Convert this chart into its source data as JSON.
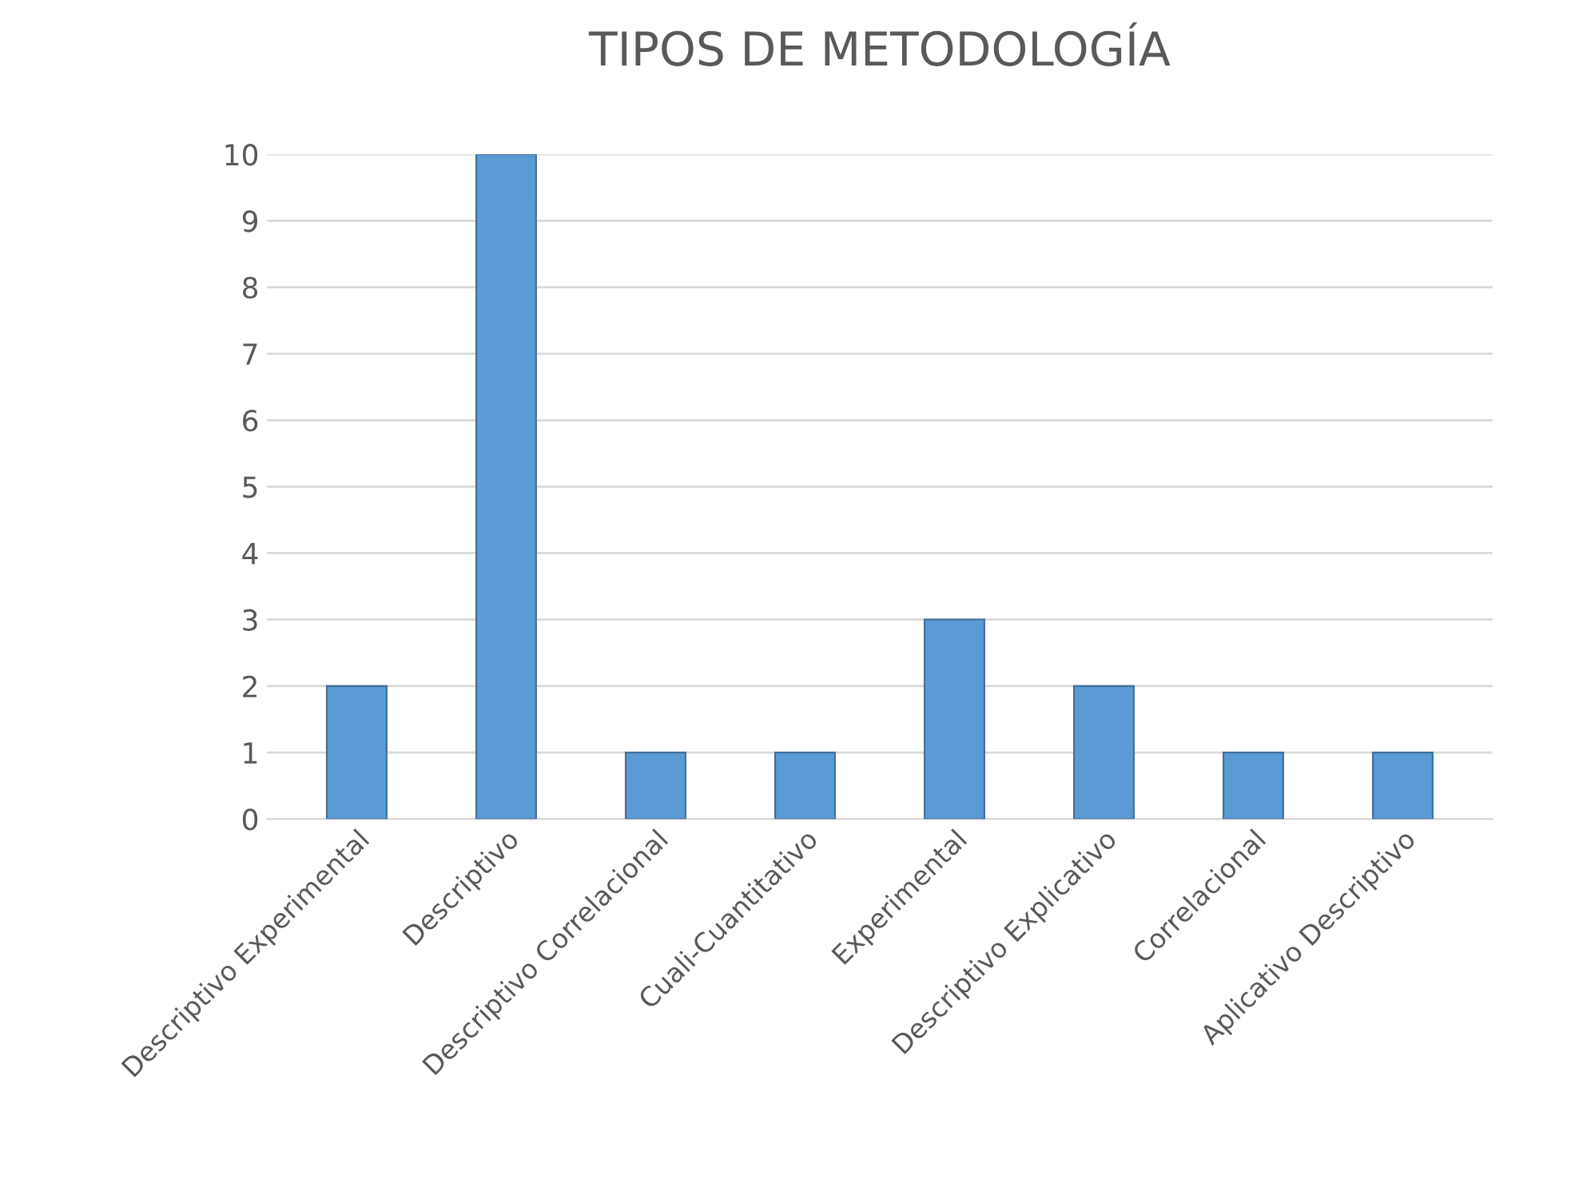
{
  "chart_data": {
    "type": "bar",
    "title": "TIPOS DE METODOLOGÍA",
    "categories": [
      "Descriptivo Experimental",
      "Descriptivo",
      "Descriptivo Correlacional",
      "Cuali-Cuantitativo",
      "Experimental",
      "Descriptivo Explicativo",
      "Correlacional",
      "Aplicativo Descriptivo"
    ],
    "values": [
      2,
      10,
      1,
      1,
      3,
      2,
      1,
      1
    ],
    "color": "#5b9bd5",
    "ylim": [
      0,
      10
    ],
    "yticks": [
      0,
      1,
      2,
      3,
      4,
      5,
      6,
      7,
      8,
      9,
      10
    ],
    "grid": "y",
    "legend": false
  }
}
